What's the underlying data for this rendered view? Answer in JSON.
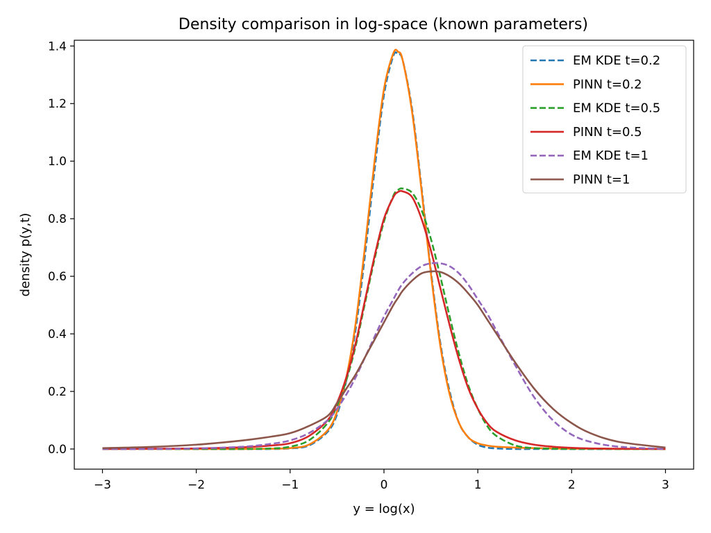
{
  "chart_data": {
    "type": "line",
    "title": "Density comparison in log-space (known parameters)",
    "xlabel": "y = log(x)",
    "ylabel": "density p(y,t)",
    "xlim": [
      -3.3,
      3.3
    ],
    "ylim": [
      -0.07,
      1.42
    ],
    "x_ticks": [
      -3,
      -2,
      -1,
      0,
      1,
      2,
      3
    ],
    "x_tick_labels": [
      "−3",
      "−2",
      "−1",
      "0",
      "1",
      "2",
      "3"
    ],
    "y_ticks": [
      0.0,
      0.2,
      0.4,
      0.6,
      0.8,
      1.0,
      1.2,
      1.4
    ],
    "y_tick_labels": [
      "0.0",
      "0.2",
      "0.4",
      "0.6",
      "0.8",
      "1.0",
      "1.2",
      "1.4"
    ],
    "grid": false,
    "legend_position": "top-right",
    "x": [
      -3.0,
      -2.5,
      -2.0,
      -1.5,
      -1.2,
      -1.0,
      -0.8,
      -0.6,
      -0.5,
      -0.4,
      -0.3,
      -0.2,
      -0.1,
      0.0,
      0.1,
      0.15,
      0.2,
      0.3,
      0.4,
      0.5,
      0.6,
      0.7,
      0.8,
      0.9,
      1.0,
      1.1,
      1.2,
      1.4,
      1.6,
      1.8,
      2.0,
      2.2,
      2.5,
      3.0
    ],
    "series": [
      {
        "name": "EM KDE t=0.2",
        "color": "#1f77b4",
        "style": "dashed",
        "values": [
          0.0,
          0.0,
          0.0,
          0.0,
          0.0,
          0.002,
          0.012,
          0.06,
          0.12,
          0.24,
          0.42,
          0.68,
          0.97,
          1.23,
          1.366,
          1.37,
          1.35,
          1.18,
          0.91,
          0.62,
          0.37,
          0.2,
          0.09,
          0.04,
          0.015,
          0.005,
          0.002,
          0.0,
          0.0,
          0.0,
          0.0,
          0.0,
          0.0,
          0.0
        ]
      },
      {
        "name": "PINN t=0.2",
        "color": "#ff7f0e",
        "style": "solid",
        "values": [
          0.0,
          0.0,
          0.0,
          0.0,
          0.001,
          0.003,
          0.015,
          0.065,
          0.13,
          0.25,
          0.44,
          0.71,
          1.0,
          1.25,
          1.375,
          1.38,
          1.35,
          1.17,
          0.9,
          0.61,
          0.36,
          0.19,
          0.09,
          0.04,
          0.02,
          0.012,
          0.008,
          0.005,
          0.003,
          0.002,
          0.001,
          0.001,
          0.0,
          0.0
        ]
      },
      {
        "name": "EM KDE t=0.5",
        "color": "#2ca02c",
        "style": "dashed",
        "values": [
          0.0,
          0.0,
          0.0,
          0.0,
          0.002,
          0.008,
          0.03,
          0.09,
          0.15,
          0.24,
          0.36,
          0.51,
          0.66,
          0.79,
          0.88,
          0.9,
          0.905,
          0.89,
          0.83,
          0.73,
          0.6,
          0.46,
          0.33,
          0.22,
          0.14,
          0.08,
          0.045,
          0.012,
          0.003,
          0.001,
          0.0,
          0.0,
          0.0,
          0.0
        ]
      },
      {
        "name": "PINN t=0.5",
        "color": "#d62728",
        "style": "solid",
        "values": [
          0.0,
          0.001,
          0.002,
          0.006,
          0.012,
          0.02,
          0.045,
          0.1,
          0.16,
          0.25,
          0.37,
          0.52,
          0.67,
          0.8,
          0.875,
          0.893,
          0.895,
          0.875,
          0.8,
          0.69,
          0.56,
          0.43,
          0.31,
          0.21,
          0.14,
          0.09,
          0.06,
          0.03,
          0.015,
          0.008,
          0.004,
          0.002,
          0.001,
          0.0
        ]
      },
      {
        "name": "EM KDE t=1",
        "color": "#9467bd",
        "style": "dashed",
        "values": [
          0.0,
          0.0,
          0.002,
          0.008,
          0.018,
          0.03,
          0.055,
          0.1,
          0.14,
          0.19,
          0.25,
          0.32,
          0.39,
          0.46,
          0.52,
          0.55,
          0.575,
          0.61,
          0.635,
          0.645,
          0.645,
          0.635,
          0.61,
          0.57,
          0.52,
          0.47,
          0.41,
          0.29,
          0.18,
          0.1,
          0.05,
          0.025,
          0.008,
          0.0
        ]
      },
      {
        "name": "PINN t=1",
        "color": "#8c564b",
        "style": "solid",
        "values": [
          0.003,
          0.007,
          0.015,
          0.03,
          0.043,
          0.055,
          0.08,
          0.115,
          0.16,
          0.21,
          0.26,
          0.32,
          0.38,
          0.44,
          0.5,
          0.525,
          0.55,
          0.585,
          0.61,
          0.617,
          0.615,
          0.6,
          0.575,
          0.54,
          0.5,
          0.45,
          0.4,
          0.3,
          0.21,
          0.14,
          0.09,
          0.055,
          0.025,
          0.005
        ]
      }
    ]
  }
}
